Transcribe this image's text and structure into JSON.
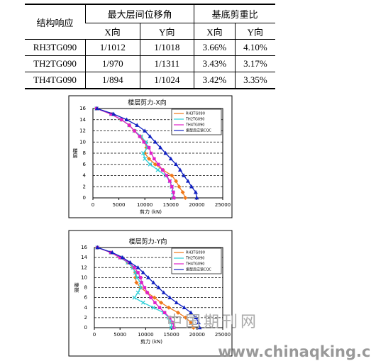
{
  "table": {
    "header": {
      "label": "结构响应",
      "drift": "最大层间位移角",
      "shear": "基底剪重比",
      "sub": [
        "X向",
        "Y向",
        "X向",
        "Y向"
      ]
    },
    "rows": [
      [
        "RH3TG090",
        "1/1012",
        "1/1018",
        "3.66%",
        "4.10%"
      ],
      [
        "TH2TG090",
        "1/970",
        "1/1311",
        "3.43%",
        "3.17%"
      ],
      [
        "TH4TG090",
        "1/894",
        "1/1024",
        "3.42%",
        "3.35%"
      ]
    ]
  },
  "chart_data": [
    {
      "type": "line",
      "title": "楼层剪力-X向",
      "xlabel": "剪力 (kN)",
      "ylabel": "楼层",
      "xlim": [
        0,
        25000
      ],
      "xticks": [
        0,
        5000,
        10000,
        15000,
        20000,
        25000
      ],
      "ylim": [
        0,
        16
      ],
      "yticks": [
        0,
        2,
        4,
        6,
        8,
        10,
        12,
        14,
        16
      ],
      "grid": true,
      "floors": [
        0,
        1,
        2,
        3,
        4,
        5,
        6,
        7,
        8,
        9,
        10,
        11,
        12,
        13,
        14,
        15,
        16
      ],
      "series": [
        {
          "name": "RH3TG090",
          "color": "#f07818",
          "marker": "diamond",
          "values": [
            17800,
            17300,
            16600,
            16000,
            15200,
            13500,
            12000,
            10800,
            10000,
            10300,
            10000,
            9200,
            8000,
            7000,
            5500,
            3500,
            700
          ]
        },
        {
          "name": "TH2TG090",
          "color": "#30d0d8",
          "marker": "cross",
          "values": [
            15500,
            15400,
            15200,
            14800,
            14000,
            12500,
            11000,
            10000,
            9700,
            10500,
            10200,
            9300,
            8000,
            7000,
            5500,
            3500,
            700
          ]
        },
        {
          "name": "TH4TG090",
          "color": "#e020c8",
          "marker": "square",
          "values": [
            15600,
            15500,
            15200,
            14800,
            14200,
            13400,
            12600,
            11800,
            11200,
            10800,
            9800,
            9000,
            8000,
            7000,
            5500,
            3500,
            700
          ]
        },
        {
          "name": "振型反应谱CQC",
          "color": "#1020c0",
          "marker": "triangle",
          "values": [
            20000,
            19800,
            19000,
            18300,
            17500,
            16800,
            16000,
            15000,
            14000,
            13000,
            12000,
            11000,
            10000,
            8500,
            6500,
            4000,
            800
          ]
        }
      ]
    },
    {
      "type": "line",
      "title": "楼层剪力-Y向",
      "xlabel": "剪力 (kN)",
      "ylabel": "楼层",
      "xlim": [
        0,
        25000
      ],
      "xticks": [
        0,
        5000,
        10000,
        15000,
        20000,
        25000
      ],
      "ylim": [
        0,
        16
      ],
      "yticks": [
        0,
        2,
        4,
        6,
        8,
        10,
        12,
        14,
        16
      ],
      "grid": true,
      "floors": [
        0,
        1,
        2,
        3,
        4,
        5,
        6,
        7,
        8,
        9,
        10,
        11,
        12,
        13,
        14,
        15,
        16
      ],
      "series": [
        {
          "name": "RH3TG090",
          "color": "#f07818",
          "marker": "diamond",
          "values": [
            19300,
            18800,
            17800,
            16300,
            14500,
            13000,
            11700,
            10300,
            9000,
            8200,
            8000,
            8000,
            7500,
            6500,
            5000,
            3200,
            600
          ]
        },
        {
          "name": "TH2TG090",
          "color": "#30d0d8",
          "marker": "cross",
          "values": [
            15000,
            15000,
            14500,
            13500,
            11500,
            9500,
            7800,
            8500,
            9000,
            9000,
            8300,
            8000,
            7500,
            6500,
            5000,
            3200,
            600
          ]
        },
        {
          "name": "TH4TG090",
          "color": "#e020c8",
          "marker": "square",
          "values": [
            15500,
            15300,
            14700,
            13700,
            12700,
            11800,
            11000,
            10300,
            9800,
            9200,
            9000,
            8500,
            7800,
            6800,
            5000,
            3200,
            600
          ]
        },
        {
          "name": "振型反应谱CQC",
          "color": "#1020c0",
          "marker": "triangle",
          "values": [
            20500,
            20300,
            19800,
            18800,
            17500,
            16000,
            14700,
            13500,
            12500,
            11500,
            10500,
            9500,
            8500,
            7000,
            5500,
            3500,
            600
          ]
        }
      ]
    }
  ],
  "watermark": {
    "cn": "中国期刊网",
    "url": "www.chinaqking.com"
  }
}
